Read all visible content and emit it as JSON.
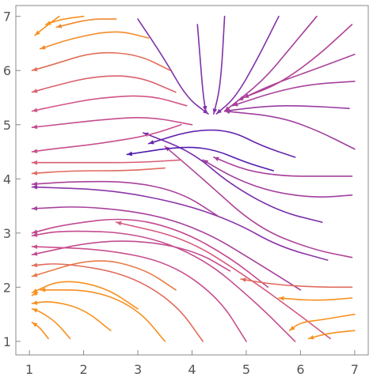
{
  "chart_data": {
    "type": "streamplot",
    "title": "",
    "xlabel": "",
    "ylabel": "",
    "xlim": [
      0.75,
      7.25
    ],
    "ylim": [
      0.75,
      7.2
    ],
    "x_ticks": [
      "1",
      "2",
      "3",
      "4",
      "5",
      "6",
      "7"
    ],
    "y_ticks": [
      "1",
      "2",
      "3",
      "4",
      "5",
      "6",
      "7"
    ],
    "grid": false,
    "color_scale": [
      "#4a18b0",
      "#8a35a8",
      "#d0508a",
      "#f7901e"
    ],
    "streamlines": [
      [
        [
          6.95,
          6.85
        ],
        [
          6.3,
          6.25
        ],
        [
          5.6,
          5.75
        ],
        [
          4.95,
          5.5
        ]
      ],
      [
        [
          7.0,
          6.3
        ],
        [
          6.2,
          6.0
        ],
        [
          5.5,
          5.75
        ],
        [
          4.85,
          5.45
        ]
      ],
      [
        [
          7.0,
          5.8
        ],
        [
          6.2,
          5.75
        ],
        [
          5.5,
          5.6
        ],
        [
          4.75,
          5.35
        ]
      ],
      [
        [
          6.9,
          5.3
        ],
        [
          6.1,
          5.35
        ],
        [
          5.4,
          5.35
        ],
        [
          4.6,
          5.25
        ]
      ],
      [
        [
          7.0,
          4.55
        ],
        [
          6.3,
          4.9
        ],
        [
          5.6,
          5.15
        ],
        [
          4.6,
          5.25
        ]
      ],
      [
        [
          6.3,
          7.0
        ],
        [
          5.8,
          6.4
        ],
        [
          5.3,
          5.8
        ],
        [
          4.6,
          5.25
        ]
      ],
      [
        [
          5.6,
          7.0
        ],
        [
          5.2,
          6.2
        ],
        [
          4.8,
          5.5
        ],
        [
          4.45,
          5.2
        ]
      ],
      [
        [
          4.6,
          7.0
        ],
        [
          4.55,
          6.1
        ],
        [
          4.5,
          5.6
        ],
        [
          4.4,
          5.2
        ]
      ],
      [
        [
          4.1,
          6.85
        ],
        [
          4.15,
          6.2
        ],
        [
          4.2,
          5.6
        ],
        [
          4.25,
          5.25
        ]
      ],
      [
        [
          3.0,
          6.95
        ],
        [
          3.5,
          6.2
        ],
        [
          3.9,
          5.5
        ],
        [
          4.3,
          5.2
        ]
      ],
      [
        [
          6.95,
          2.55
        ],
        [
          6.2,
          2.7
        ],
        [
          5.2,
          3.1
        ],
        [
          4.2,
          4.0
        ],
        [
          3.5,
          4.6
        ]
      ],
      [
        [
          6.4,
          3.2
        ],
        [
          5.6,
          3.4
        ],
        [
          4.7,
          3.9
        ],
        [
          4.0,
          4.5
        ],
        [
          3.1,
          4.85
        ]
      ],
      [
        [
          5.9,
          4.4
        ],
        [
          5.3,
          4.6
        ],
        [
          4.7,
          4.9
        ],
        [
          4.0,
          4.9
        ],
        [
          3.2,
          4.65
        ]
      ],
      [
        [
          5.5,
          4.15
        ],
        [
          5.0,
          4.3
        ],
        [
          4.4,
          4.55
        ],
        [
          3.8,
          4.6
        ],
        [
          2.8,
          4.45
        ]
      ],
      [
        [
          6.95,
          3.7
        ],
        [
          6.3,
          3.65
        ],
        [
          5.5,
          3.75
        ],
        [
          4.8,
          4.0
        ],
        [
          4.2,
          4.35
        ]
      ],
      [
        [
          6.95,
          4.05
        ],
        [
          6.4,
          4.05
        ],
        [
          5.7,
          4.05
        ],
        [
          5.0,
          4.15
        ],
        [
          4.4,
          4.4
        ]
      ],
      [
        [
          5.4,
          2.0
        ],
        [
          4.7,
          2.55
        ],
        [
          3.8,
          3.05
        ],
        [
          2.8,
          3.3
        ],
        [
          1.6,
          3.15
        ],
        [
          1.05,
          3.0
        ]
      ],
      [
        [
          6.0,
          1.95
        ],
        [
          5.2,
          2.45
        ],
        [
          4.3,
          3.0
        ],
        [
          3.3,
          3.35
        ],
        [
          2.0,
          3.5
        ],
        [
          1.05,
          3.45
        ]
      ],
      [
        [
          6.5,
          2.5
        ],
        [
          5.6,
          2.75
        ],
        [
          4.8,
          3.2
        ],
        [
          3.8,
          3.55
        ],
        [
          2.5,
          3.8
        ],
        [
          1.05,
          3.85
        ]
      ],
      [
        [
          4.7,
          2.3
        ],
        [
          4.1,
          2.65
        ],
        [
          3.2,
          2.85
        ],
        [
          2.2,
          2.85
        ],
        [
          1.05,
          2.6
        ]
      ],
      [
        [
          3.7,
          1.95
        ],
        [
          3.1,
          2.35
        ],
        [
          2.2,
          2.55
        ],
        [
          1.05,
          2.2
        ]
      ],
      [
        [
          3.0,
          1.6
        ],
        [
          2.4,
          2.0
        ],
        [
          1.6,
          2.15
        ],
        [
          1.05,
          1.9
        ]
      ],
      [
        [
          2.5,
          1.2
        ],
        [
          2.0,
          1.6
        ],
        [
          1.4,
          1.75
        ],
        [
          1.05,
          1.7
        ]
      ],
      [
        [
          3.5,
          1.0
        ],
        [
          3.0,
          1.6
        ],
        [
          2.2,
          1.95
        ],
        [
          1.2,
          1.95
        ]
      ],
      [
        [
          4.2,
          1.0
        ],
        [
          3.7,
          1.7
        ],
        [
          2.8,
          2.25
        ],
        [
          1.6,
          2.45
        ],
        [
          1.05,
          2.4
        ]
      ],
      [
        [
          5.0,
          1.0
        ],
        [
          4.5,
          1.8
        ],
        [
          3.6,
          2.45
        ],
        [
          2.4,
          2.7
        ],
        [
          1.05,
          2.75
        ]
      ],
      [
        [
          5.9,
          1.0
        ],
        [
          5.2,
          1.7
        ],
        [
          4.2,
          2.55
        ],
        [
          3.0,
          3.0
        ],
        [
          1.6,
          3.05
        ],
        [
          1.05,
          2.95
        ]
      ],
      [
        [
          6.55,
          1.05
        ],
        [
          5.9,
          1.55
        ],
        [
          5.0,
          2.2
        ],
        [
          3.9,
          2.9
        ],
        [
          2.6,
          3.2
        ]
      ],
      [
        [
          7.0,
          1.5
        ],
        [
          6.4,
          1.4
        ],
        [
          6.0,
          1.35
        ],
        [
          5.8,
          1.2
        ]
      ],
      [
        [
          7.0,
          1.2
        ],
        [
          6.5,
          1.15
        ],
        [
          6.15,
          1.05
        ]
      ],
      [
        [
          6.95,
          1.8
        ],
        [
          6.3,
          1.75
        ],
        [
          5.6,
          1.8
        ]
      ],
      [
        [
          6.95,
          2.0
        ],
        [
          6.3,
          2.0
        ],
        [
          5.5,
          2.05
        ],
        [
          4.9,
          2.15
        ]
      ],
      [
        [
          1.75,
          1.05
        ],
        [
          1.5,
          1.35
        ],
        [
          1.2,
          1.55
        ],
        [
          1.05,
          1.6
        ]
      ],
      [
        [
          1.35,
          1.05
        ],
        [
          1.2,
          1.25
        ],
        [
          1.05,
          1.35
        ]
      ],
      [
        [
          1.15,
          1.9
        ],
        [
          1.05,
          1.85
        ]
      ],
      [
        [
          3.8,
          5.0
        ],
        [
          3.2,
          4.8
        ],
        [
          2.3,
          4.65
        ],
        [
          1.4,
          4.55
        ],
        [
          1.05,
          4.5
        ]
      ],
      [
        [
          4.0,
          5.0
        ],
        [
          3.2,
          5.15
        ],
        [
          2.4,
          5.1
        ],
        [
          1.5,
          5.0
        ],
        [
          1.05,
          4.95
        ]
      ],
      [
        [
          3.9,
          5.35
        ],
        [
          3.2,
          5.55
        ],
        [
          2.3,
          5.5
        ],
        [
          1.5,
          5.35
        ],
        [
          1.05,
          5.25
        ]
      ],
      [
        [
          3.7,
          5.6
        ],
        [
          3.0,
          5.9
        ],
        [
          2.2,
          5.9
        ],
        [
          1.4,
          5.7
        ],
        [
          1.05,
          5.6
        ]
      ],
      [
        [
          3.6,
          6.0
        ],
        [
          3.0,
          6.3
        ],
        [
          2.2,
          6.35
        ],
        [
          1.4,
          6.1
        ],
        [
          1.05,
          6.0
        ]
      ],
      [
        [
          3.2,
          6.6
        ],
        [
          2.6,
          6.75
        ],
        [
          1.8,
          6.6
        ],
        [
          1.2,
          6.4
        ]
      ],
      [
        [
          2.6,
          6.95
        ],
        [
          2.1,
          6.95
        ],
        [
          1.5,
          6.8
        ]
      ],
      [
        [
          2.0,
          7.0
        ],
        [
          1.6,
          6.95
        ],
        [
          1.3,
          6.85
        ]
      ],
      [
        [
          1.55,
          7.0
        ],
        [
          1.35,
          6.85
        ],
        [
          1.1,
          6.65
        ]
      ],
      [
        [
          3.5,
          4.2
        ],
        [
          2.8,
          4.15
        ],
        [
          1.8,
          4.15
        ],
        [
          1.05,
          4.1
        ]
      ],
      [
        [
          4.5,
          3.3
        ],
        [
          3.8,
          3.75
        ],
        [
          2.9,
          3.95
        ],
        [
          1.8,
          3.95
        ],
        [
          1.05,
          3.9
        ]
      ],
      [
        [
          3.8,
          4.35
        ],
        [
          3.0,
          4.3
        ],
        [
          2.0,
          4.3
        ],
        [
          1.05,
          4.3
        ]
      ]
    ]
  }
}
